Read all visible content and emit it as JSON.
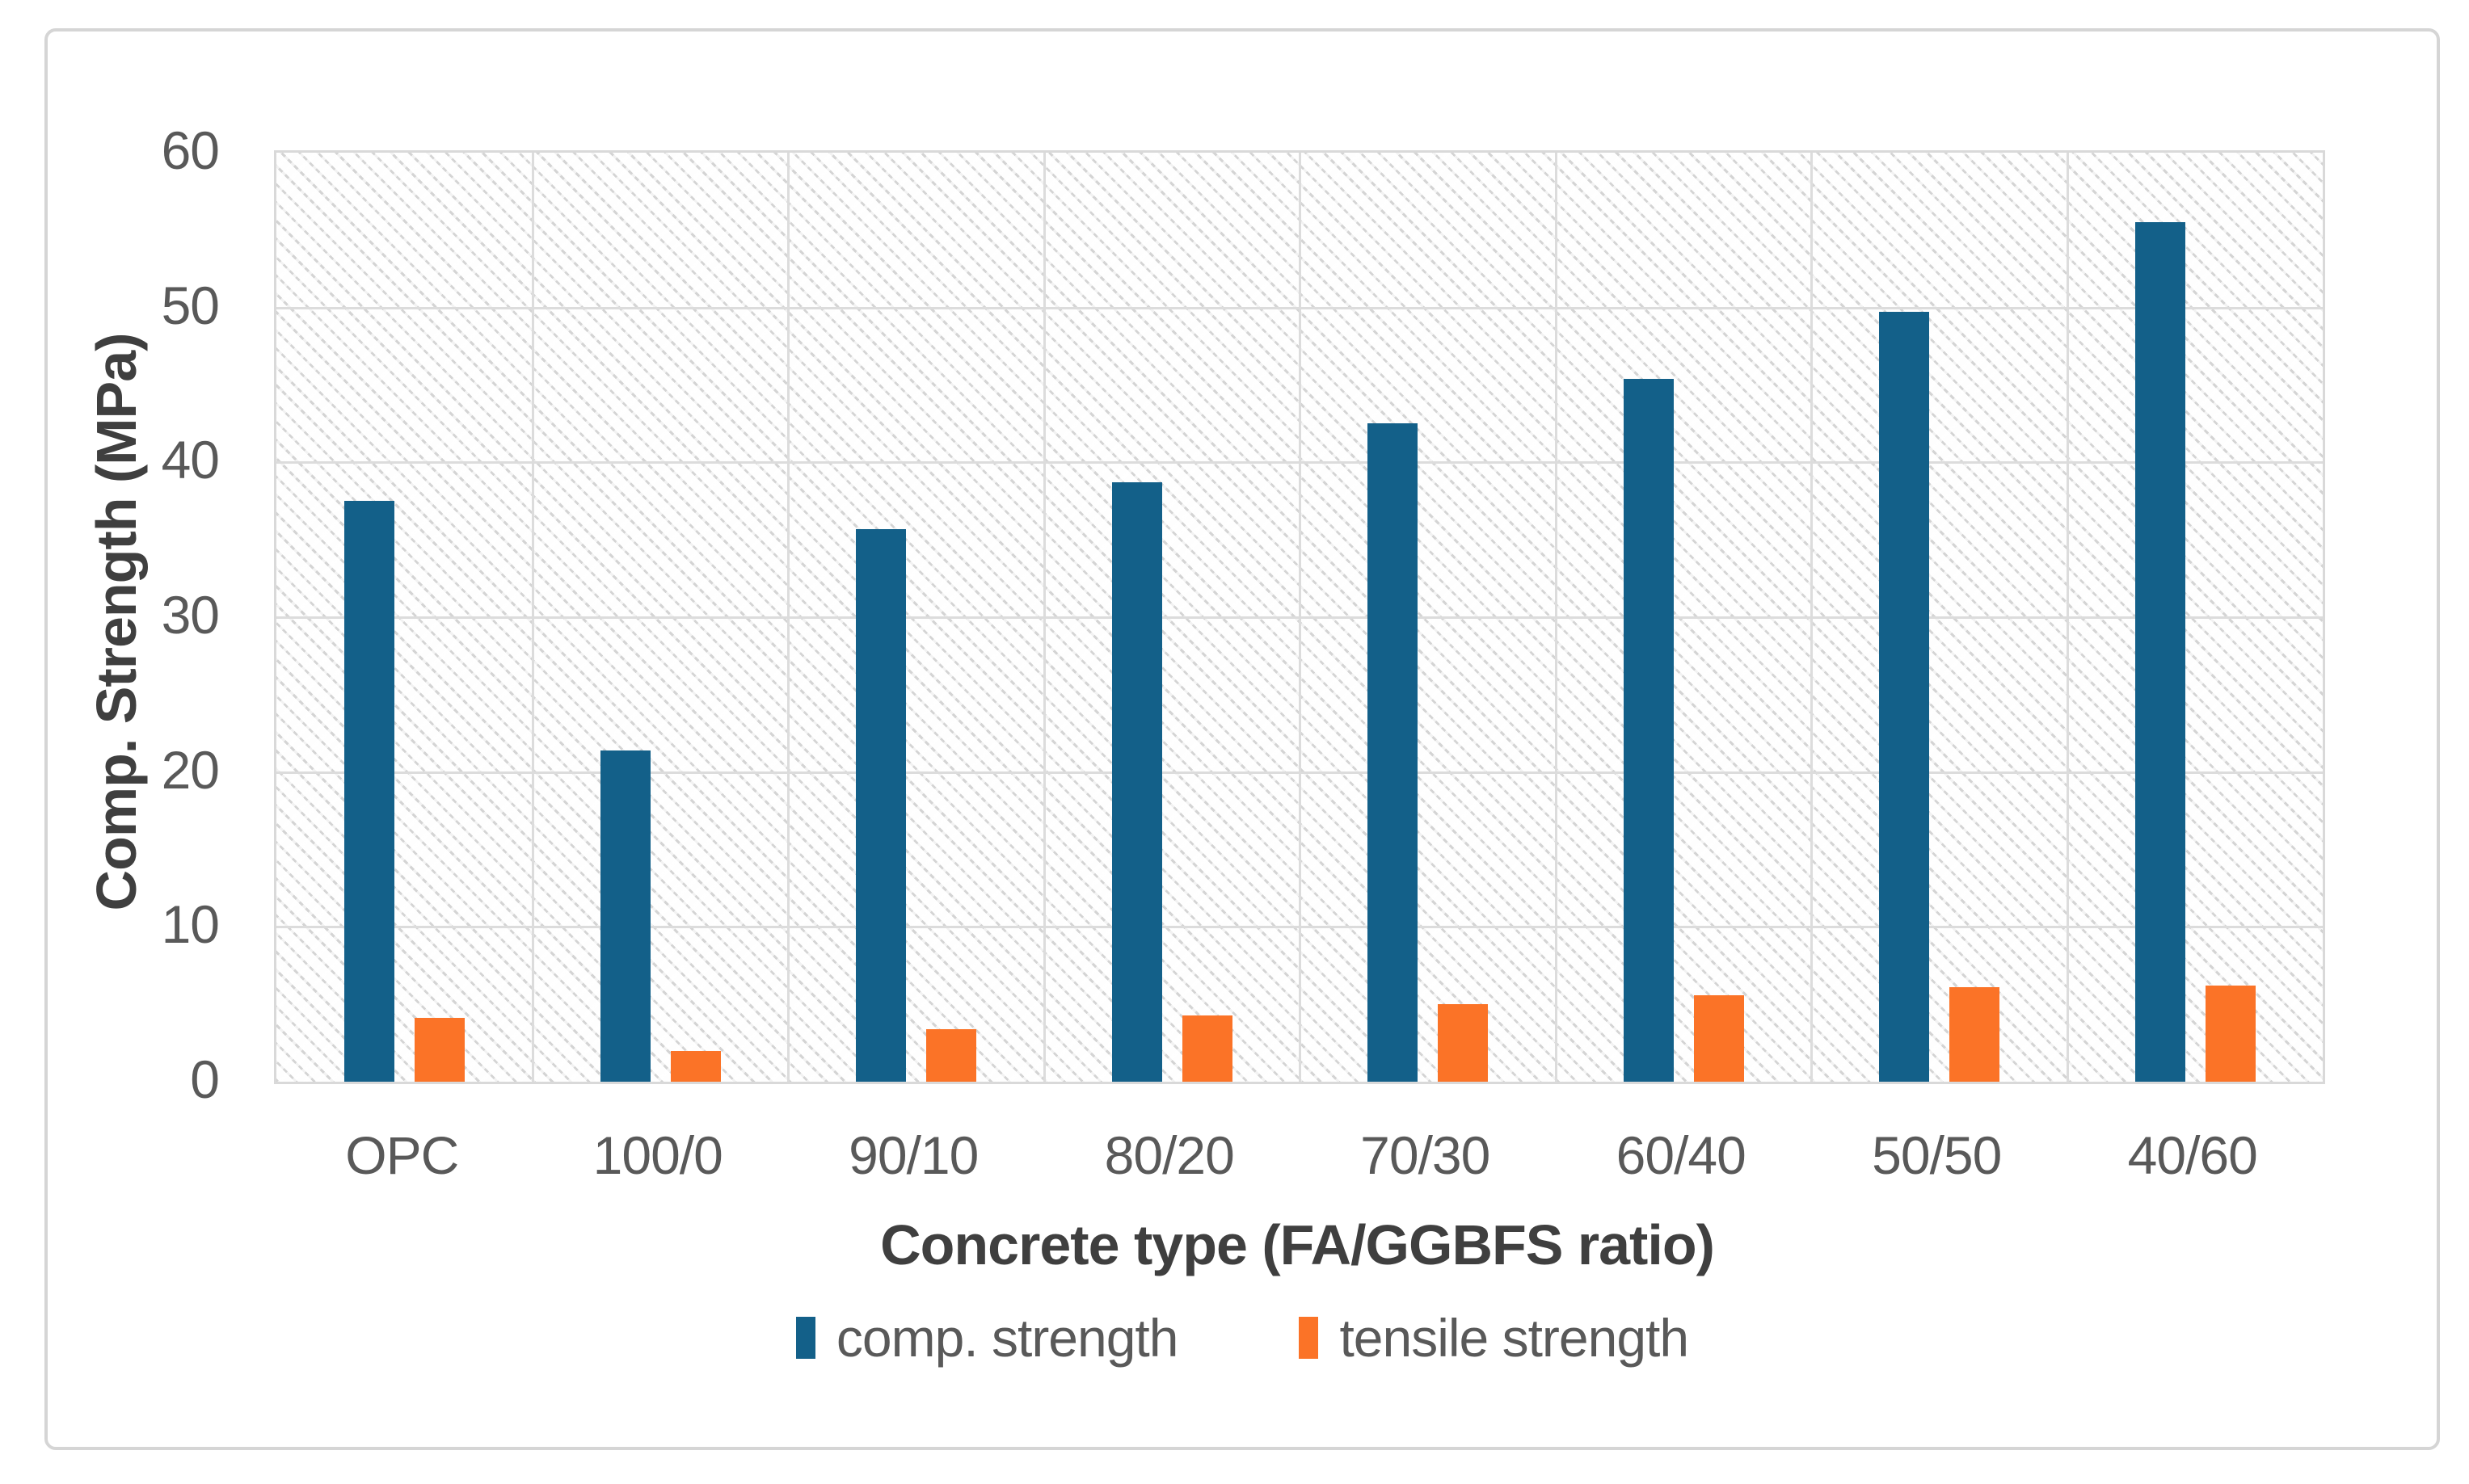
{
  "figure": {
    "background": "#ffffff",
    "border_color": "#d5d5d5"
  },
  "chart_data": {
    "type": "bar",
    "title": "",
    "categories": [
      "OPC",
      "100/0",
      "90/10",
      "80/20",
      "70/30",
      "60/40",
      "50/50",
      "40/60"
    ],
    "series": [
      {
        "name": "comp. strength",
        "color": "#136089",
        "values": [
          37.5,
          21.4,
          35.7,
          38.7,
          42.5,
          45.4,
          49.7,
          55.5
        ]
      },
      {
        "name": "tensile strength",
        "color": "#fb7327",
        "values": [
          4.1,
          2.0,
          3.4,
          4.3,
          5.0,
          5.6,
          6.1,
          6.2
        ]
      }
    ],
    "xlabel": "Concrete type (FA/GGBFS ratio)",
    "ylabel": "Comp. Strength (MPa)",
    "ylim": [
      0,
      60
    ],
    "yticks": [
      0,
      10,
      20,
      30,
      40,
      50,
      60
    ],
    "grid": true,
    "plot_background_pattern": "light diagonal dotted hatch",
    "legend_position": "bottom",
    "gridline_color": "#dcdcdc",
    "tick_label_color": "#595959",
    "axis_title_color": "#3f3f3f"
  }
}
